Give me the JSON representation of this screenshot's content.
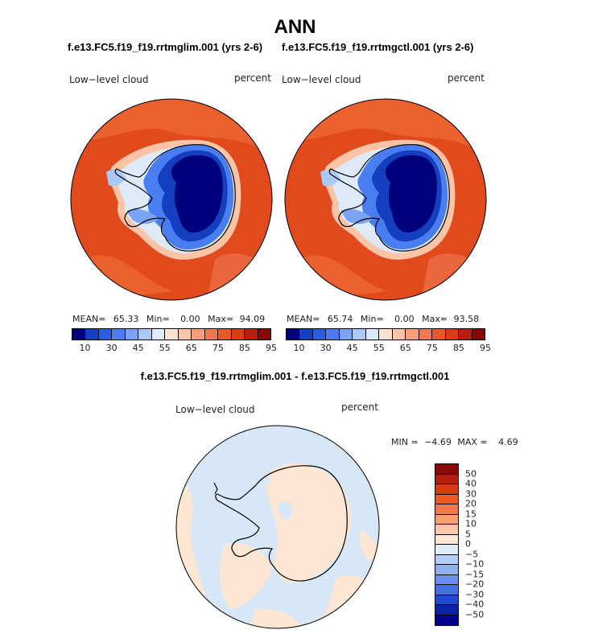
{
  "title": "ANN",
  "panels": [
    {
      "subtitle": "f.e13.FC5.f19_f19.rrtmglim.001 (yrs 2-6)",
      "variable": "Low−level cloud",
      "units": "percent",
      "mean_label": "MEAN=",
      "mean": "65.33",
      "min_label": "Min=",
      "min": "0.00",
      "max_label": "Max=",
      "max": "94.09"
    },
    {
      "subtitle": "f.e13.FC5.f19_f19.rrtmgctl.001 (yrs 2-6)",
      "variable": "Low−level cloud",
      "units": "percent",
      "mean_label": "MEAN=",
      "mean": "65.74",
      "min_label": "Min=",
      "min": "0.00",
      "max_label": "Max=",
      "max": "93.58"
    }
  ],
  "top_colorbar": {
    "colors": [
      "#00007a",
      "#1440c0",
      "#2a5ee0",
      "#4a7ef0",
      "#7aa4f4",
      "#aac8f8",
      "#dceaf9",
      "#fde3d0",
      "#fbc4a6",
      "#f8a07a",
      "#f27a50",
      "#e85a2c",
      "#d63e14",
      "#b4200c",
      "#850a06"
    ],
    "tick_labels": [
      "10",
      "30",
      "45",
      "55",
      "65",
      "75",
      "85",
      "95"
    ]
  },
  "diff": {
    "subtitle": "f.e13.FC5.f19_f19.rrtmglim.001 - f.e13.FC5.f19_f19.rrtmgctl.001",
    "variable": "Low−level cloud",
    "units": "percent",
    "min_label": "MIN =",
    "min": "−4.69",
    "max_label": "MAX =",
    "max": "4.69"
  },
  "diff_colorbar": {
    "colors": [
      "#8a0a08",
      "#b31e0e",
      "#d63a12",
      "#ee5a26",
      "#f27a48",
      "#f7a070",
      "#fbc8a8",
      "#fde8d8",
      "#ddeaf8",
      "#b4cff5",
      "#8fb0f0",
      "#6a90ea",
      "#4470e0",
      "#2248cc",
      "#0a22a8",
      "#00008a"
    ],
    "tick_labels": [
      "50",
      "40",
      "30",
      "20",
      "15",
      "10",
      "5",
      "0",
      "−5",
      "−10",
      "−15",
      "−20",
      "−30",
      "−40",
      "−50"
    ]
  },
  "map_colors": {
    "ocean_high": "#e04a1c",
    "ocean_mid": "#ee6a36",
    "antarctic_low": "#00007a",
    "diff_neg": "#d6e7f8",
    "diff_pos": "#fde6d2",
    "coast": "#000000"
  }
}
